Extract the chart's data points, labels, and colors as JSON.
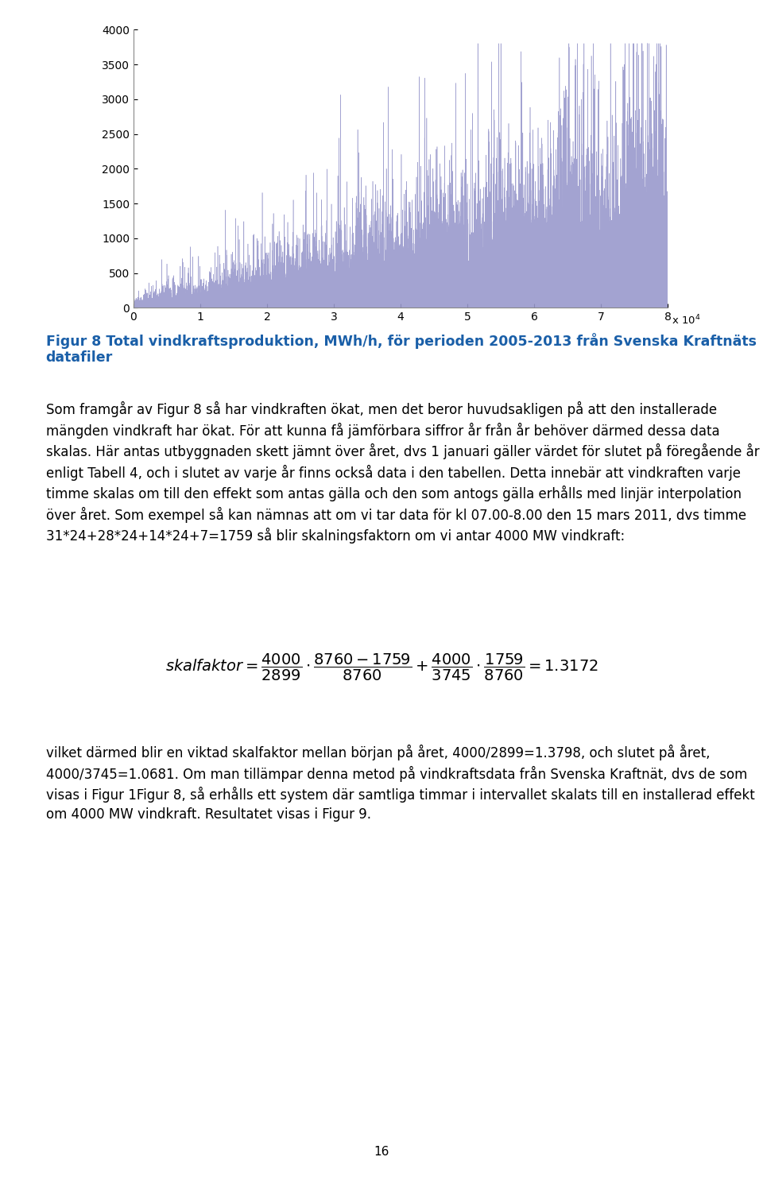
{
  "page_width": 9.6,
  "page_height": 14.9,
  "dpi": 100,
  "background_color": "#ffffff",
  "chart": {
    "xlim": [
      0,
      8
    ],
    "ylim": [
      0,
      4000
    ],
    "yticks": [
      0,
      500,
      1000,
      1500,
      2000,
      2500,
      3000,
      3500,
      4000
    ],
    "xticks": [
      0,
      1,
      2,
      3,
      4,
      5,
      6,
      7,
      8
    ],
    "line_color": "#9999cc",
    "n_points": 78800,
    "seed": 12345
  },
  "figure_caption_bold": "Figur 8 Total vindkraftsproduktion, MWh/h, för perioden 2005-2013 från Svenska Kraftnäts datafiler",
  "caption_color": "#1a5fa8",
  "body_text": "Som framgår av Figur 8 så har vindkraften ökat, men det beror huvudsakligen på att den installerade mängden vindkraft har ökat. För att kunna få jämförbara siffror år från år behöver därmed dessa data skalas. Här antas utbyggnaden skett jämnt över året, dvs 1 januari gäller värdet för slutet på föregående år enligt Tabell 4, och i slutet av varje år finns också data i den tabellen. Detta innebär att vindkraften varje timme skalas om till den effekt som antas gälla och den som antogs gälla erhålls med linjär interpolation över året. Som exempel så kan nämnas att om vi tar data för kl 07.00-8.00 den 15 mars 2011, dvs timme 31*24+28*24+14*24+7=1759 så blir skalningsfaktorn om vi antar 4000 MW vindkraft:",
  "last_paragraph": "vilket därmed blir en viktad skalfaktor mellan början på året, 4000/2899=1.3798, och slutet på året, 4000/3745=1.0681. Om man tillämpar denna metod på vindkraftsdata från Svenska Kraftnät, dvs de som visas i Figur 1Figur 8, så erhålls ett system där samtliga timmar i intervallet skalats till en installerad effekt om 4000 MW vindkraft. Resultatet visas i Figur 9.",
  "page_number": "16",
  "body_fontsize": 12.0,
  "caption_fontsize": 12.5,
  "formula_fontsize": 14
}
